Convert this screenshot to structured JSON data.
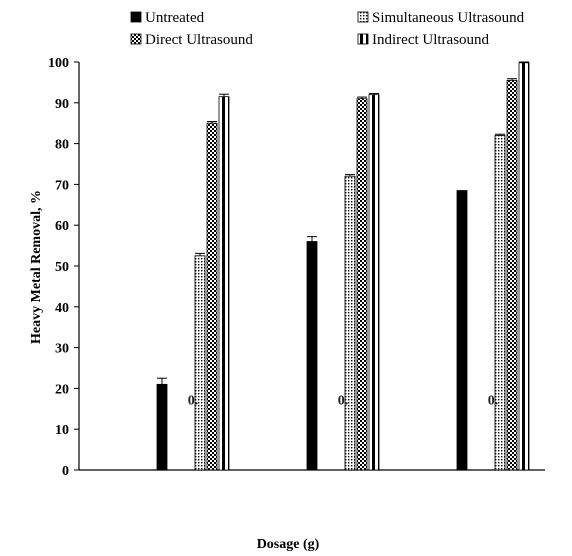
{
  "chart_data": {
    "type": "bar",
    "xlabel": "Dosage (g)",
    "ylabel": "Heavy Metal Removal, %",
    "ylim": [
      0,
      100
    ],
    "yticks": [
      0,
      10,
      20,
      30,
      40,
      50,
      60,
      70,
      80,
      90,
      100
    ],
    "grid": false,
    "legend_position": "top",
    "categories": [
      "0.",
      "0.",
      "0."
    ],
    "series": [
      {
        "name": "Untreated",
        "pattern": "solid",
        "values": [
          21,
          56,
          68.5
        ],
        "errors": [
          1.5,
          1.2,
          0
        ]
      },
      {
        "name": "Simultaneous Ultrasound",
        "pattern": "dots",
        "values": [
          52.5,
          72,
          82
        ],
        "errors": [
          0.6,
          0.4,
          0.3
        ]
      },
      {
        "name": "Direct Ultrasound",
        "pattern": "checker",
        "values": [
          85,
          91,
          95.5
        ],
        "errors": [
          0.4,
          0.4,
          0.4
        ]
      },
      {
        "name": "Indirect Ultrasound",
        "pattern": "stripes",
        "values": [
          91.5,
          92,
          99.8
        ],
        "errors": [
          0.6,
          0.3,
          0.2
        ]
      }
    ]
  }
}
